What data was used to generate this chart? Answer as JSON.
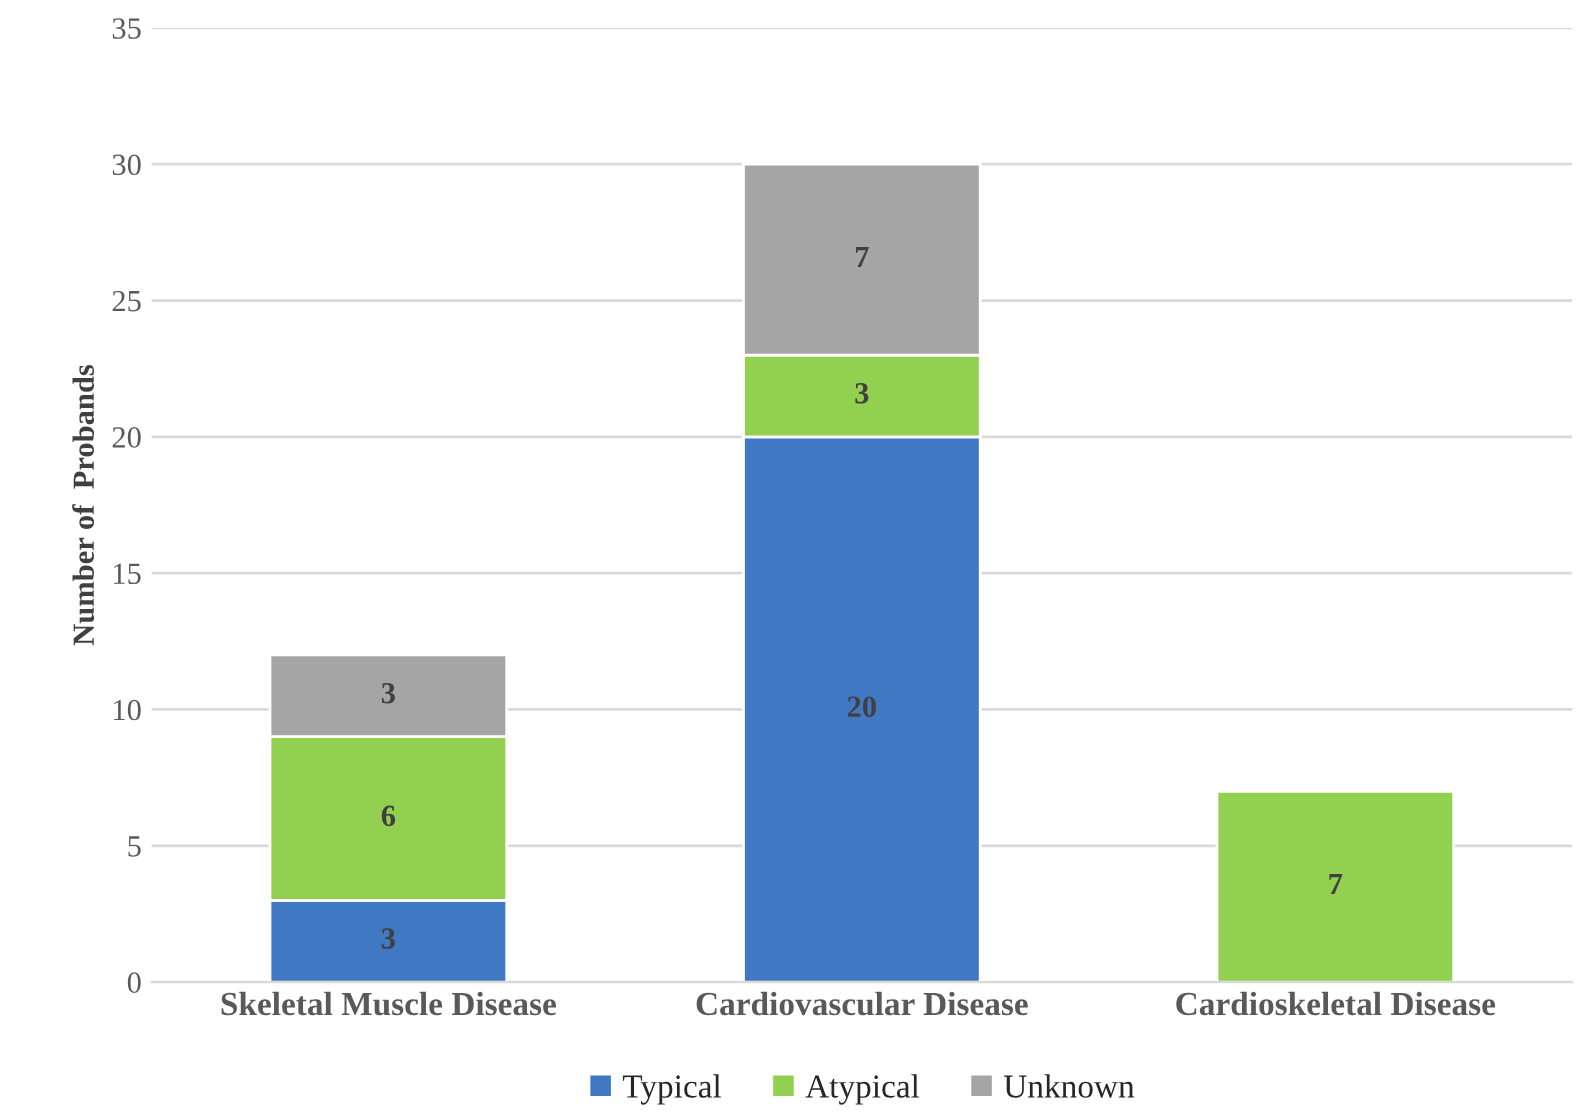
{
  "chart_data": {
    "type": "bar",
    "stacked": true,
    "ylabel": "Number of  Probands",
    "categories": [
      "Skeletal Muscle Disease",
      "Cardiovascular Disease",
      "Cardioskeletal Disease"
    ],
    "series": [
      {
        "name": "Typical",
        "color": "#4178c4",
        "values": [
          3,
          20,
          null
        ]
      },
      {
        "name": "Atypical",
        "color": "#92d050",
        "values": [
          6,
          3,
          7
        ]
      },
      {
        "name": "Unknown",
        "color": "#a5a5a5",
        "values": [
          3,
          7,
          null
        ]
      }
    ],
    "ylim": [
      0,
      35
    ],
    "yticks": [
      0,
      5,
      10,
      15,
      20,
      25,
      30,
      35
    ],
    "grid": "y",
    "legend": "bottom",
    "data_labels": true
  }
}
